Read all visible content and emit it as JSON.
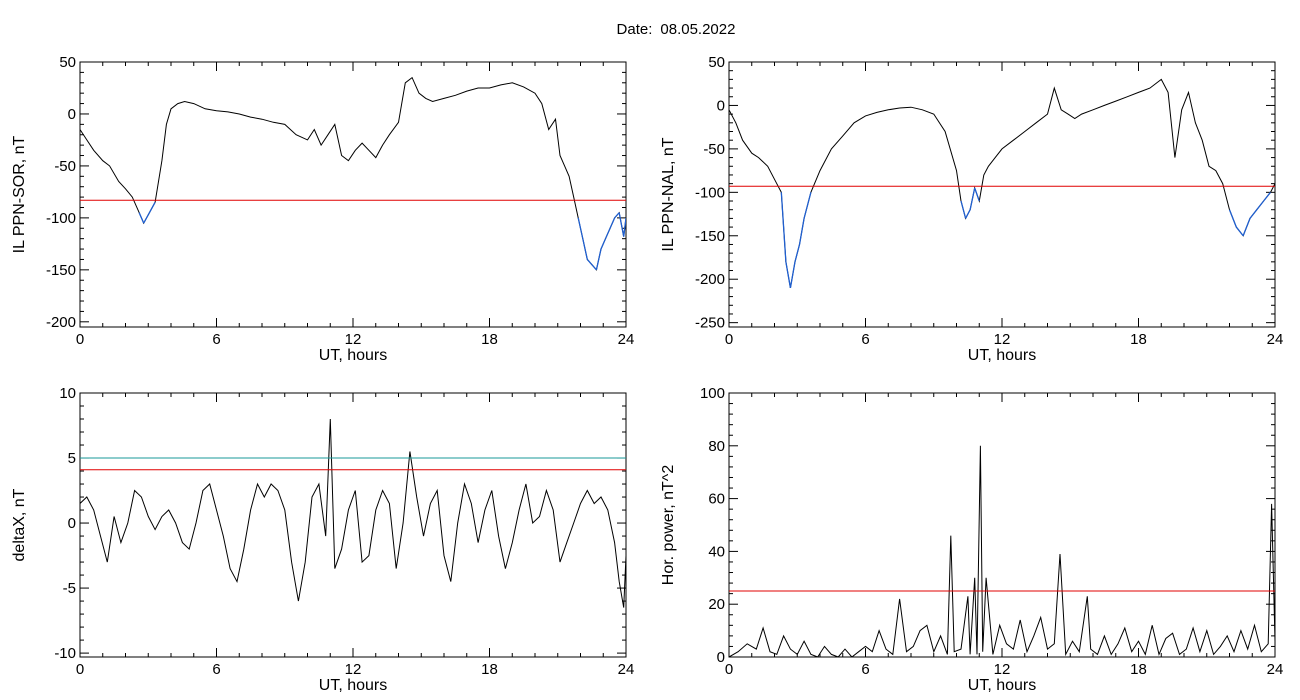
{
  "header": {
    "date_label": "Date:",
    "date_value": "08.05.2022"
  },
  "colors": {
    "line": "#000000",
    "below_threshold": "#1f5fd0",
    "threshold_red": "#e00000",
    "threshold_teal": "#1a9a9a"
  },
  "chart_data": [
    {
      "type": "line",
      "name": "IL PPN-SOR",
      "xlabel": "UT, hours",
      "ylabel": "IL PPN-SOR, nT",
      "xlim": [
        0,
        24
      ],
      "ylim": [
        -205,
        50
      ],
      "xticks": [
        0,
        6,
        12,
        18,
        24
      ],
      "yticks": [
        50,
        0,
        -50,
        -100,
        -150,
        -200
      ],
      "thresholds": [
        {
          "value": -83,
          "color": "threshold_red"
        }
      ],
      "below_color": "below_threshold",
      "x": [
        0,
        0.3,
        0.6,
        1.0,
        1.3,
        1.7,
        2.0,
        2.3,
        2.6,
        2.8,
        3.0,
        3.3,
        3.6,
        3.8,
        4.0,
        4.3,
        4.6,
        5.0,
        5.5,
        6.0,
        6.5,
        7.0,
        7.5,
        8.0,
        8.5,
        9.0,
        9.5,
        10.0,
        10.3,
        10.6,
        10.9,
        11.2,
        11.5,
        11.8,
        12.1,
        12.4,
        12.7,
        13.0,
        13.3,
        13.6,
        14.0,
        14.3,
        14.6,
        14.9,
        15.2,
        15.5,
        16.0,
        16.5,
        17.0,
        17.5,
        18.0,
        18.5,
        19.0,
        19.5,
        20.0,
        20.3,
        20.6,
        20.9,
        21.1,
        21.3,
        21.5,
        21.7,
        21.9,
        22.1,
        22.3,
        22.5,
        22.7,
        22.9,
        23.1,
        23.3,
        23.5,
        23.7,
        23.9,
        24.0
      ],
      "y": [
        -15,
        -25,
        -35,
        -45,
        -50,
        -65,
        -72,
        -80,
        -95,
        -105,
        -97,
        -85,
        -45,
        -10,
        5,
        10,
        12,
        10,
        5,
        3,
        2,
        0,
        -3,
        -5,
        -8,
        -10,
        -20,
        -25,
        -15,
        -30,
        -20,
        -10,
        -40,
        -45,
        -35,
        -28,
        -35,
        -42,
        -30,
        -20,
        -8,
        30,
        35,
        20,
        15,
        12,
        15,
        18,
        22,
        25,
        25,
        28,
        30,
        26,
        20,
        10,
        -15,
        -5,
        -40,
        -50,
        -60,
        -80,
        -100,
        -120,
        -140,
        -145,
        -150,
        -130,
        -120,
        -110,
        -100,
        -95,
        -118,
        -100
      ]
    },
    {
      "type": "line",
      "name": "IL PPN-NAL",
      "xlabel": "UT, hours",
      "ylabel": "IL PPN-NAL, nT",
      "xlim": [
        0,
        24
      ],
      "ylim": [
        -255,
        50
      ],
      "xticks": [
        0,
        6,
        12,
        18,
        24
      ],
      "yticks": [
        50,
        0,
        -50,
        -100,
        -150,
        -200,
        -250
      ],
      "thresholds": [
        {
          "value": -93,
          "color": "threshold_red"
        }
      ],
      "below_color": "below_threshold",
      "x": [
        0,
        0.3,
        0.6,
        1.0,
        1.3,
        1.7,
        2.0,
        2.3,
        2.5,
        2.7,
        2.9,
        3.1,
        3.3,
        3.6,
        4.0,
        4.5,
        5.0,
        5.5,
        6.0,
        6.5,
        7.0,
        7.5,
        8.0,
        8.5,
        9.0,
        9.5,
        10.0,
        10.2,
        10.4,
        10.6,
        10.8,
        11.0,
        11.2,
        11.4,
        11.7,
        12.0,
        12.5,
        13.0,
        13.5,
        14.0,
        14.3,
        14.6,
        14.9,
        15.2,
        15.5,
        16.0,
        16.5,
        17.0,
        17.5,
        18.0,
        18.5,
        19.0,
        19.3,
        19.6,
        19.9,
        20.2,
        20.5,
        20.8,
        21.1,
        21.4,
        21.7,
        22.0,
        22.3,
        22.6,
        22.9,
        23.2,
        23.5,
        23.8,
        24.0
      ],
      "y": [
        -5,
        -20,
        -40,
        -55,
        -60,
        -70,
        -85,
        -100,
        -180,
        -210,
        -180,
        -160,
        -130,
        -100,
        -75,
        -50,
        -35,
        -20,
        -12,
        -8,
        -5,
        -3,
        -2,
        -5,
        -10,
        -30,
        -75,
        -110,
        -130,
        -120,
        -95,
        -110,
        -80,
        -70,
        -60,
        -50,
        -40,
        -30,
        -20,
        -10,
        20,
        -5,
        -10,
        -15,
        -10,
        -5,
        0,
        5,
        10,
        15,
        20,
        30,
        15,
        -60,
        -5,
        15,
        -20,
        -40,
        -70,
        -75,
        -90,
        -120,
        -140,
        -150,
        -130,
        -120,
        -110,
        -100,
        -90
      ]
    },
    {
      "type": "line",
      "name": "deltaX",
      "xlabel": "UT, hours",
      "ylabel": "deltaX, nT",
      "xlim": [
        0,
        24
      ],
      "ylim": [
        -10.3,
        10
      ],
      "xticks": [
        0,
        6,
        12,
        18,
        24
      ],
      "yticks": [
        10,
        5,
        0,
        -5,
        -10
      ],
      "thresholds": [
        {
          "value": 5.0,
          "color": "threshold_teal"
        },
        {
          "value": 4.1,
          "color": "threshold_red"
        }
      ],
      "x": [
        0,
        0.3,
        0.6,
        0.9,
        1.2,
        1.5,
        1.8,
        2.1,
        2.4,
        2.7,
        3.0,
        3.3,
        3.6,
        3.9,
        4.2,
        4.5,
        4.8,
        5.1,
        5.4,
        5.7,
        6.0,
        6.3,
        6.6,
        6.9,
        7.2,
        7.5,
        7.8,
        8.1,
        8.4,
        8.7,
        9.0,
        9.3,
        9.6,
        9.9,
        10.2,
        10.5,
        10.8,
        11.0,
        11.2,
        11.5,
        11.8,
        12.1,
        12.4,
        12.7,
        13.0,
        13.3,
        13.6,
        13.9,
        14.2,
        14.5,
        14.8,
        15.1,
        15.4,
        15.7,
        16.0,
        16.3,
        16.6,
        16.9,
        17.2,
        17.5,
        17.8,
        18.1,
        18.4,
        18.7,
        19.0,
        19.3,
        19.6,
        19.9,
        20.2,
        20.5,
        20.8,
        21.1,
        21.4,
        21.7,
        22.0,
        22.3,
        22.6,
        22.9,
        23.2,
        23.5,
        23.7,
        23.9,
        24.0
      ],
      "y": [
        1.5,
        2.0,
        1.0,
        -1.0,
        -3.0,
        0.5,
        -1.5,
        0.0,
        2.5,
        2.0,
        0.5,
        -0.5,
        0.5,
        1.0,
        0.0,
        -1.5,
        -2.0,
        0.0,
        2.5,
        3.0,
        1.0,
        -1.0,
        -3.5,
        -4.5,
        -2.0,
        1.0,
        3.0,
        2.0,
        3.0,
        2.5,
        1.0,
        -3.0,
        -6.0,
        -3.0,
        2.0,
        3.0,
        -1.0,
        8.0,
        -3.5,
        -2.0,
        1.0,
        2.5,
        -3.0,
        -2.5,
        1.0,
        2.5,
        1.5,
        -3.5,
        0.0,
        5.5,
        2.0,
        -1.0,
        1.5,
        2.5,
        -2.5,
        -4.5,
        0.0,
        3.0,
        1.5,
        -1.5,
        1.0,
        2.5,
        -1.0,
        -3.5,
        -1.5,
        1.0,
        3.0,
        0.0,
        0.5,
        2.5,
        1.0,
        -3.0,
        -1.5,
        0.0,
        1.5,
        2.5,
        1.5,
        2.0,
        1.0,
        -1.5,
        -4.5,
        -6.5,
        -2.5
      ]
    },
    {
      "type": "line",
      "name": "Hor. power",
      "xlabel": "UT, hours",
      "ylabel": "Hor. power, nT^2",
      "xlim": [
        0,
        24
      ],
      "ylim": [
        0,
        100
      ],
      "xticks": [
        0,
        6,
        12,
        18,
        24
      ],
      "yticks": [
        100,
        80,
        60,
        40,
        20,
        0
      ],
      "thresholds": [
        {
          "value": 25,
          "color": "threshold_red"
        }
      ],
      "x": [
        0,
        0.4,
        0.8,
        1.2,
        1.5,
        1.8,
        2.1,
        2.4,
        2.7,
        3.0,
        3.3,
        3.6,
        3.9,
        4.2,
        4.5,
        4.8,
        5.1,
        5.4,
        5.7,
        6.0,
        6.3,
        6.6,
        6.9,
        7.2,
        7.5,
        7.8,
        8.1,
        8.4,
        8.7,
        9.0,
        9.3,
        9.6,
        9.75,
        9.9,
        10.2,
        10.5,
        10.6,
        10.8,
        10.9,
        11.05,
        11.15,
        11.3,
        11.6,
        11.9,
        12.2,
        12.5,
        12.8,
        13.1,
        13.4,
        13.7,
        14.0,
        14.3,
        14.55,
        14.8,
        15.1,
        15.4,
        15.75,
        15.9,
        16.2,
        16.5,
        16.8,
        17.1,
        17.4,
        17.7,
        18.0,
        18.3,
        18.6,
        18.9,
        19.2,
        19.5,
        19.8,
        20.1,
        20.4,
        20.7,
        21.0,
        21.3,
        21.6,
        21.9,
        22.2,
        22.5,
        22.8,
        23.1,
        23.4,
        23.7,
        23.85,
        24.0
      ],
      "y": [
        0,
        2,
        5,
        3,
        11,
        2,
        1,
        8,
        3,
        1,
        6,
        1,
        0,
        4,
        1,
        0,
        3,
        0,
        2,
        4,
        2,
        10,
        3,
        1,
        22,
        2,
        4,
        10,
        12,
        2,
        8,
        1,
        46,
        2,
        3,
        23,
        1,
        30,
        1,
        80,
        2,
        30,
        1,
        12,
        5,
        3,
        14,
        2,
        8,
        15,
        3,
        5,
        39,
        1,
        6,
        2,
        23,
        3,
        1,
        8,
        1,
        5,
        11,
        2,
        6,
        1,
        12,
        1,
        7,
        9,
        1,
        3,
        11,
        2,
        10,
        1,
        4,
        8,
        2,
        10,
        3,
        12,
        2,
        5,
        58,
        6
      ]
    }
  ]
}
